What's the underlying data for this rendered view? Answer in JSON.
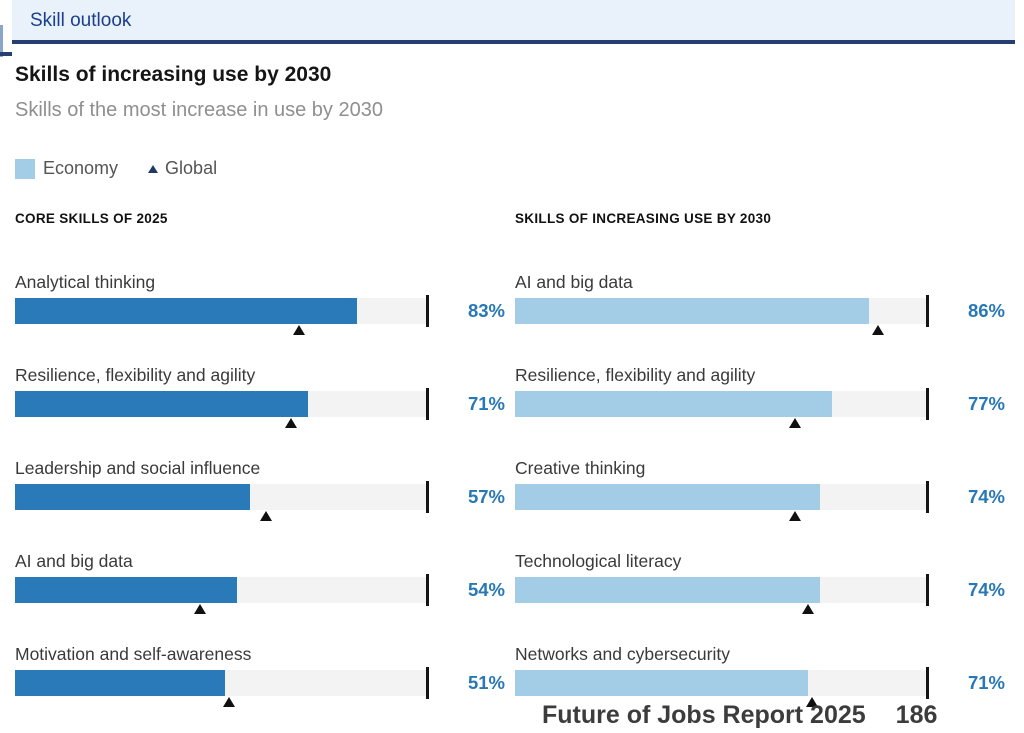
{
  "tab": {
    "label": "Skill outlook"
  },
  "title": "Skills of increasing use by 2030",
  "subtitle": "Skills of the most increase in use by 2030",
  "legend": {
    "economy_label": "Economy",
    "global_label": "Global"
  },
  "footer": {
    "report_title": "Future of Jobs Report 2025",
    "page_number": "186"
  },
  "colors": {
    "economy_dark_bar": "#2a79b8",
    "economy_light_bar": "#a3cde7",
    "bar_track": "#f3f3f3",
    "value_text": "#2878b5",
    "global_marker": "#101010",
    "tab_band_bg": "#e9f2fb",
    "tab_text": "#1b3f8f",
    "navy_rule": "#263f73"
  },
  "chart_data": {
    "type": "bar",
    "orientation": "horizontal",
    "unit": "%",
    "xlim": [
      0,
      100
    ],
    "grid": false,
    "legend_entries": [
      "Economy",
      "Global"
    ],
    "legend_position": "top-left",
    "panels": [
      {
        "header": "CORE SKILLS OF 2025",
        "bar_color": "#2a79b8",
        "series_names": [
          "Economy (bar)",
          "Global (triangle marker)"
        ],
        "rows": [
          {
            "label": "Analytical thinking",
            "economy": 83,
            "global": 69
          },
          {
            "label": "Resilience, flexibility and agility",
            "economy": 71,
            "global": 67
          },
          {
            "label": "Leadership and social influence",
            "economy": 57,
            "global": 61
          },
          {
            "label": "AI and big data",
            "economy": 54,
            "global": 45
          },
          {
            "label": "Motivation and self-awareness",
            "economy": 51,
            "global": 52
          }
        ]
      },
      {
        "header": "SKILLS OF INCREASING USE BY 2030",
        "bar_color": "#a3cde7",
        "series_names": [
          "Economy (bar)",
          "Global (triangle marker)"
        ],
        "rows": [
          {
            "label": "AI and big data",
            "economy": 86,
            "global": 88
          },
          {
            "label": "Resilience, flexibility and agility",
            "economy": 77,
            "global": 68
          },
          {
            "label": "Creative thinking",
            "economy": 74,
            "global": 68
          },
          {
            "label": "Technological literacy",
            "economy": 74,
            "global": 71
          },
          {
            "label": "Networks and cybersecurity",
            "economy": 71,
            "global": 72
          }
        ]
      }
    ]
  }
}
